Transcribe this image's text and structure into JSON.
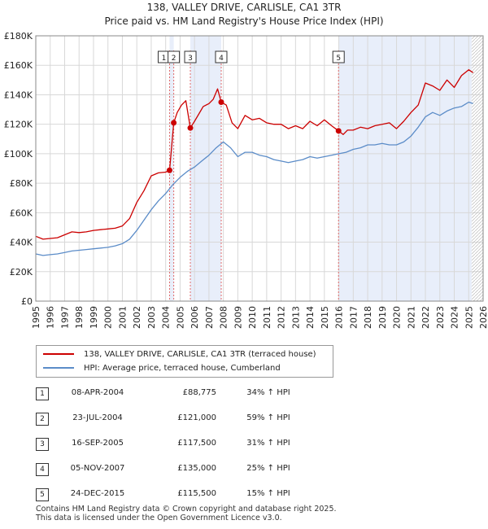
{
  "title_line1": "138, VALLEY DRIVE, CARLISLE, CA1 3TR",
  "title_line2": "Price paid vs. HM Land Registry's House Price Index (HPI)",
  "colors": {
    "price_paid": "#cc0000",
    "hpi": "#5b8cc8",
    "shade": "#e8eefa",
    "vline": "#e06a6a"
  },
  "legend": {
    "price_paid_label": "138, VALLEY DRIVE, CARLISLE, CA1 3TR (terraced house)",
    "hpi_label": "HPI: Average price, terraced house, Cumberland"
  },
  "transactions": [
    {
      "num": "1",
      "date": "08-APR-2004",
      "price": "£88,775",
      "hpi": "34% ↑ HPI"
    },
    {
      "num": "2",
      "date": "23-JUL-2004",
      "price": "£121,000",
      "hpi": "59% ↑ HPI"
    },
    {
      "num": "3",
      "date": "16-SEP-2005",
      "price": "£117,500",
      "hpi": "31% ↑ HPI"
    },
    {
      "num": "4",
      "date": "05-NOV-2007",
      "price": "£135,000",
      "hpi": "25% ↑ HPI"
    },
    {
      "num": "5",
      "date": "24-DEC-2015",
      "price": "£115,500",
      "hpi": "15% ↑ HPI"
    }
  ],
  "footer": {
    "line1": "Contains HM Land Registry data © Crown copyright and database right 2025.",
    "line2": "This data is licensed under the Open Government Licence v3.0."
  },
  "chart_data": {
    "type": "line",
    "title": "Price paid vs. HM Land Registry's House Price Index (HPI)",
    "xlim": [
      1995,
      2026
    ],
    "ylim": [
      0,
      180000
    ],
    "x_ticks": [
      "1995",
      "1996",
      "1997",
      "1998",
      "1999",
      "2000",
      "2001",
      "2002",
      "2003",
      "2004",
      "2005",
      "2006",
      "2007",
      "2008",
      "2009",
      "2010",
      "2011",
      "2012",
      "2013",
      "2014",
      "2015",
      "2016",
      "2017",
      "2018",
      "2019",
      "2020",
      "2021",
      "2022",
      "2023",
      "2024",
      "2025",
      "2026"
    ],
    "y_ticks": [
      {
        "value": 0,
        "label": "£0"
      },
      {
        "value": 20000,
        "label": "£20K"
      },
      {
        "value": 40000,
        "label": "£40K"
      },
      {
        "value": 60000,
        "label": "£60K"
      },
      {
        "value": 80000,
        "label": "£80K"
      },
      {
        "value": 100000,
        "label": "£100K"
      },
      {
        "value": 120000,
        "label": "£120K"
      },
      {
        "value": 140000,
        "label": "£140K"
      },
      {
        "value": 160000,
        "label": "£160K"
      },
      {
        "value": 180000,
        "label": "£180K"
      }
    ],
    "grid": true,
    "shaded_ranges": [
      [
        2004.27,
        2004.56
      ],
      [
        2005.71,
        2007.85
      ],
      [
        2015.98,
        2025.2
      ]
    ],
    "forecast_start": 2025.2,
    "series": [
      {
        "name": "138, VALLEY DRIVE, CARLISLE, CA1 3TR (terraced house)",
        "x": [
          1995,
          1995.5,
          1996,
          1996.5,
          1997,
          1997.5,
          1998,
          1998.5,
          1999,
          1999.5,
          2000,
          2000.5,
          2001,
          2001.5,
          2002,
          2002.5,
          2003,
          2003.5,
          2004.0,
          2004.27,
          2004.27,
          2004.56,
          2004.8,
          2005.1,
          2005.4,
          2005.71,
          2005.71,
          2006.0,
          2006.3,
          2006.6,
          2007.0,
          2007.3,
          2007.6,
          2007.85,
          2008.2,
          2008.6,
          2009.0,
          2009.5,
          2010.0,
          2010.5,
          2011.0,
          2011.5,
          2012.0,
          2012.5,
          2013.0,
          2013.5,
          2014.0,
          2014.5,
          2015.0,
          2015.5,
          2015.98,
          2016.3,
          2016.6,
          2017.0,
          2017.5,
          2018.0,
          2018.5,
          2019.0,
          2019.5,
          2020.0,
          2020.5,
          2021.0,
          2021.5,
          2022.0,
          2022.5,
          2023.0,
          2023.5,
          2024.0,
          2024.5,
          2025.0,
          2025.3
        ],
        "values": [
          44000,
          42000,
          42500,
          43000,
          45000,
          47000,
          46500,
          47000,
          48000,
          48500,
          49000,
          49500,
          51000,
          56000,
          67000,
          75000,
          85000,
          87000,
          87500,
          88775,
          88775,
          121000,
          128000,
          133000,
          136000,
          117500,
          117500,
          122000,
          127000,
          132000,
          134000,
          137000,
          144000,
          135000,
          133000,
          121000,
          117000,
          126000,
          123000,
          124000,
          121000,
          120000,
          120000,
          117000,
          119000,
          117000,
          122000,
          119000,
          123000,
          119000,
          115500,
          113000,
          116000,
          116000,
          118000,
          117000,
          119000,
          120000,
          121000,
          117000,
          122000,
          128000,
          133000,
          148000,
          146000,
          143000,
          150000,
          145000,
          153000,
          157000,
          155000
        ]
      },
      {
        "name": "HPI: Average price, terraced house, Cumberland",
        "x": [
          1995,
          1995.5,
          1996,
          1996.5,
          1997,
          1997.5,
          1998,
          1998.5,
          1999,
          1999.5,
          2000,
          2000.5,
          2001,
          2001.5,
          2002,
          2002.5,
          2003,
          2003.5,
          2004.0,
          2004.5,
          2005.0,
          2005.5,
          2006.0,
          2006.5,
          2007.0,
          2007.5,
          2008.0,
          2008.5,
          2009.0,
          2009.5,
          2010.0,
          2010.5,
          2011.0,
          2011.5,
          2012.0,
          2012.5,
          2013.0,
          2013.5,
          2014.0,
          2014.5,
          2015.0,
          2015.5,
          2016.0,
          2016.5,
          2017.0,
          2017.5,
          2018.0,
          2018.5,
          2019.0,
          2019.5,
          2020.0,
          2020.5,
          2021.0,
          2021.5,
          2022.0,
          2022.5,
          2023.0,
          2023.5,
          2024.0,
          2024.5,
          2025.0,
          2025.3
        ],
        "values": [
          32000,
          31000,
          31500,
          32000,
          33000,
          34000,
          34500,
          35000,
          35500,
          36000,
          36500,
          37500,
          39000,
          42000,
          48000,
          55000,
          62000,
          68000,
          73000,
          79000,
          84000,
          88000,
          91000,
          95000,
          99000,
          104000,
          108000,
          104000,
          98000,
          101000,
          101000,
          99000,
          98000,
          96000,
          95000,
          94000,
          95000,
          96000,
          98000,
          97000,
          98000,
          99000,
          100000,
          101000,
          103000,
          104000,
          106000,
          106000,
          107000,
          106000,
          106000,
          108000,
          112000,
          118000,
          125000,
          128000,
          126000,
          129000,
          131000,
          132000,
          135000,
          134000
        ]
      }
    ],
    "markers": [
      {
        "label": "1",
        "x": 2004.27,
        "y": 88775
      },
      {
        "label": "2",
        "x": 2004.56,
        "y": 121000
      },
      {
        "label": "3",
        "x": 2005.71,
        "y": 117500
      },
      {
        "label": "4",
        "x": 2007.85,
        "y": 135000
      },
      {
        "label": "5",
        "x": 2015.98,
        "y": 115500
      }
    ]
  }
}
